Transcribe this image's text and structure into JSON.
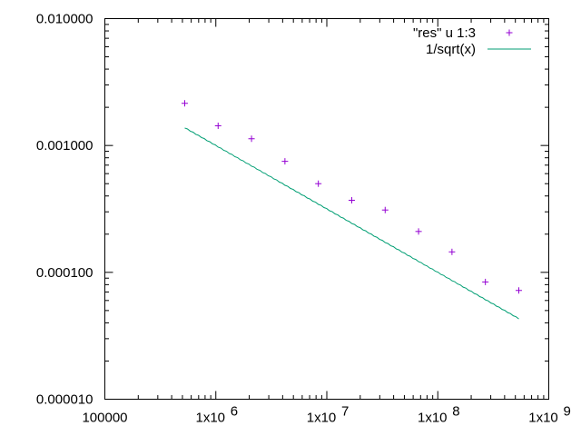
{
  "chart_data": {
    "type": "scatter",
    "title": "",
    "xlabel": "",
    "ylabel": "",
    "x_scale": "log",
    "y_scale": "log",
    "xlim": [
      100000,
      1000000000
    ],
    "ylim": [
      1e-05,
      0.01
    ],
    "grid": false,
    "legend_position": "top-right",
    "x_ticks": [
      {
        "value": 100000,
        "label": "100000"
      },
      {
        "value": 1000000,
        "mantissa": "1x10",
        "exponent": "6"
      },
      {
        "value": 10000000,
        "mantissa": "1x10",
        "exponent": "7"
      },
      {
        "value": 100000000,
        "mantissa": "1x10",
        "exponent": "8"
      },
      {
        "value": 1000000000,
        "mantissa": "1x10",
        "exponent": "9"
      }
    ],
    "y_ticks": [
      {
        "value": 0.01,
        "label": "0.010000"
      },
      {
        "value": 0.001,
        "label": "0.001000"
      },
      {
        "value": 0.0001,
        "label": "0.000100"
      },
      {
        "value": 1e-05,
        "label": "0.000010"
      }
    ],
    "series": [
      {
        "name": "\"res\" u 1:3",
        "type": "scatter",
        "color": "#9400d3",
        "marker": "plus",
        "x": [
          524288,
          1048576,
          2097152,
          4194304,
          8388608,
          16777216,
          33554432,
          67108864,
          134217728,
          268435456,
          536870912
        ],
        "y": [
          0.00215,
          0.00143,
          0.00113,
          0.00075,
          0.0005,
          0.00037,
          0.00031,
          0.00021,
          0.000145,
          8.4e-05,
          7.2e-05
        ]
      },
      {
        "name": "1/sqrt(x)",
        "type": "line",
        "color": "#009e73",
        "function": "1/sqrt(x)",
        "x_range": [
          524288,
          536870912
        ]
      }
    ]
  }
}
